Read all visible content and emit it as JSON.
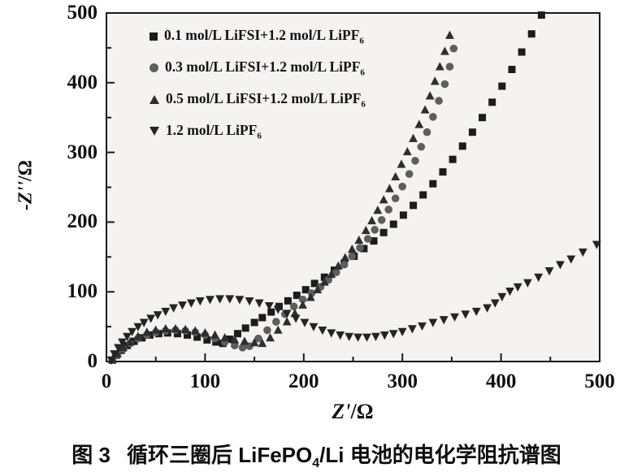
{
  "figure": {
    "caption": {
      "prefix": "图 3",
      "pre": "循环三圈后 LiFePO",
      "sub": "4",
      "post": "/Li 电池的电化学阻抗谱图"
    }
  },
  "chart_data": {
    "type": "scatter",
    "title": "",
    "xlabel": {
      "main": "Z'",
      "unit": "/Ω"
    },
    "ylabel": {
      "main": "-Z''",
      "unit": "/Ω"
    },
    "xlim": [
      0,
      500
    ],
    "ylim": [
      0,
      500
    ],
    "x_ticks": [
      0,
      100,
      200,
      300,
      400,
      500
    ],
    "y_ticks": [
      0,
      100,
      200,
      300,
      400,
      500
    ],
    "minor_tick_step": 50,
    "grid": false,
    "legend_position": "top-left",
    "plot_bg": "#f4f3f1",
    "axis_color": "#1a1a1a",
    "series": [
      {
        "name": "0.1 mol/L LiFSI+1.2 mol/L LiPF6",
        "label": "0.1 mol/L LiFSI+1.2 mol/L LiPF",
        "label_sub": "6",
        "marker": "square",
        "color": "#1c1c1c",
        "points": [
          [
            6,
            2
          ],
          [
            10,
            9
          ],
          [
            15,
            16
          ],
          [
            21,
            23
          ],
          [
            28,
            29
          ],
          [
            36,
            34
          ],
          [
            44,
            38
          ],
          [
            53,
            40
          ],
          [
            62,
            41
          ],
          [
            72,
            40
          ],
          [
            82,
            38
          ],
          [
            92,
            35
          ],
          [
            102,
            31
          ],
          [
            111,
            28
          ],
          [
            118,
            26
          ],
          [
            125,
            32
          ],
          [
            133,
            40
          ],
          [
            141,
            48
          ],
          [
            150,
            56
          ],
          [
            158,
            63
          ],
          [
            167,
            71
          ],
          [
            175,
            79
          ],
          [
            184,
            87
          ],
          [
            193,
            95
          ],
          [
            202,
            103
          ],
          [
            211,
            112
          ],
          [
            221,
            121
          ],
          [
            231,
            131
          ],
          [
            241,
            141
          ],
          [
            251,
            151
          ],
          [
            261,
            162
          ],
          [
            271,
            173
          ],
          [
            281,
            185
          ],
          [
            291,
            197
          ],
          [
            301,
            210
          ],
          [
            311,
            224
          ],
          [
            321,
            239
          ],
          [
            331,
            255
          ],
          [
            341,
            272
          ],
          [
            351,
            290
          ],
          [
            361,
            309
          ],
          [
            371,
            329
          ],
          [
            381,
            350
          ],
          [
            391,
            372
          ],
          [
            401,
            395
          ],
          [
            411,
            419
          ],
          [
            421,
            444
          ],
          [
            431,
            470
          ],
          [
            441,
            497
          ]
        ]
      },
      {
        "name": "0.3 mol/L LiFSI+1.2 mol/L LiPF6",
        "label": "0.3 mol/L LiFSI+1.2 mol/L LiPF",
        "label_sub": "6",
        "marker": "circle",
        "color": "#5e5e5e",
        "points": [
          [
            6,
            2
          ],
          [
            11,
            10
          ],
          [
            17,
            18
          ],
          [
            24,
            26
          ],
          [
            32,
            33
          ],
          [
            41,
            38
          ],
          [
            50,
            42
          ],
          [
            60,
            44
          ],
          [
            70,
            45
          ],
          [
            80,
            44
          ],
          [
            90,
            42
          ],
          [
            100,
            38
          ],
          [
            110,
            33
          ],
          [
            120,
            28
          ],
          [
            130,
            23
          ],
          [
            138,
            20
          ],
          [
            145,
            22
          ],
          [
            154,
            33
          ],
          [
            163,
            45
          ],
          [
            172,
            57
          ],
          [
            181,
            68
          ],
          [
            190,
            79
          ],
          [
            199,
            89
          ],
          [
            208,
            98
          ],
          [
            217,
            107
          ],
          [
            225,
            117
          ],
          [
            233,
            128
          ],
          [
            241,
            139
          ],
          [
            249,
            151
          ],
          [
            257,
            163
          ],
          [
            265,
            176
          ],
          [
            272,
            189
          ],
          [
            279,
            203
          ],
          [
            286,
            218
          ],
          [
            293,
            234
          ],
          [
            300,
            251
          ],
          [
            307,
            269
          ],
          [
            313,
            288
          ],
          [
            319,
            308
          ],
          [
            325,
            329
          ],
          [
            331,
            351
          ],
          [
            337,
            374
          ],
          [
            343,
            398
          ],
          [
            348,
            423
          ],
          [
            352,
            449
          ]
        ]
      },
      {
        "name": "0.5 mol/L LiFSI+1.2 mol/L LiPF6",
        "label": "0.5 mol/L LiFSI+1.2 mol/L LiPF",
        "label_sub": "6",
        "marker": "triangle-up",
        "color": "#2e2e2e",
        "points": [
          [
            6,
            3
          ],
          [
            11,
            11
          ],
          [
            17,
            20
          ],
          [
            24,
            28
          ],
          [
            32,
            36
          ],
          [
            41,
            42
          ],
          [
            50,
            45
          ],
          [
            60,
            47
          ],
          [
            70,
            47
          ],
          [
            80,
            46
          ],
          [
            90,
            44
          ],
          [
            100,
            41
          ],
          [
            110,
            38
          ],
          [
            120,
            34
          ],
          [
            130,
            31
          ],
          [
            140,
            29
          ],
          [
            150,
            27
          ],
          [
            158,
            26
          ],
          [
            166,
            34
          ],
          [
            174,
            45
          ],
          [
            183,
            57
          ],
          [
            191,
            69
          ],
          [
            199,
            81
          ],
          [
            207,
            92
          ],
          [
            214,
            103
          ],
          [
            221,
            114
          ],
          [
            228,
            125
          ],
          [
            235,
            137
          ],
          [
            242,
            149
          ],
          [
            249,
            161
          ],
          [
            256,
            174
          ],
          [
            263,
            188
          ],
          [
            269,
            202
          ],
          [
            275,
            217
          ],
          [
            281,
            232
          ],
          [
            287,
            248
          ],
          [
            293,
            265
          ],
          [
            299,
            283
          ],
          [
            305,
            301
          ],
          [
            311,
            320
          ],
          [
            317,
            340
          ],
          [
            323,
            361
          ],
          [
            328,
            381
          ],
          [
            333,
            402
          ],
          [
            338,
            423
          ],
          [
            343,
            445
          ],
          [
            348,
            468
          ]
        ]
      },
      {
        "name": "1.2 mol/L LiPF6",
        "label": "1.2 mol/L LiPF",
        "label_sub": "6",
        "marker": "triangle-down",
        "color": "#242424",
        "points": [
          [
            5,
            2
          ],
          [
            8,
            11
          ],
          [
            12,
            20
          ],
          [
            16,
            28
          ],
          [
            21,
            36
          ],
          [
            26,
            43
          ],
          [
            32,
            50
          ],
          [
            38,
            56
          ],
          [
            45,
            62
          ],
          [
            52,
            67
          ],
          [
            60,
            72
          ],
          [
            68,
            77
          ],
          [
            77,
            81
          ],
          [
            86,
            84
          ],
          [
            95,
            87
          ],
          [
            105,
            89
          ],
          [
            115,
            90
          ],
          [
            125,
            90
          ],
          [
            135,
            89
          ],
          [
            145,
            87
          ],
          [
            155,
            84
          ],
          [
            165,
            80
          ],
          [
            174,
            75
          ],
          [
            183,
            69
          ],
          [
            192,
            62
          ],
          [
            201,
            56
          ],
          [
            210,
            50
          ],
          [
            219,
            45
          ],
          [
            228,
            41
          ],
          [
            237,
            38
          ],
          [
            246,
            36
          ],
          [
            255,
            35
          ],
          [
            264,
            35
          ],
          [
            273,
            36
          ],
          [
            282,
            38
          ],
          [
            291,
            40
          ],
          [
            300,
            43
          ],
          [
            310,
            47
          ],
          [
            320,
            51
          ],
          [
            331,
            56
          ],
          [
            342,
            60
          ],
          [
            353,
            64
          ],
          [
            364,
            68
          ],
          [
            375,
            72
          ],
          [
            386,
            77
          ],
          [
            394,
            84
          ],
          [
            401,
            93
          ],
          [
            409,
            101
          ],
          [
            417,
            107
          ],
          [
            427,
            113
          ],
          [
            438,
            121
          ],
          [
            449,
            130
          ],
          [
            460,
            139
          ],
          [
            471,
            147
          ],
          [
            483,
            157
          ],
          [
            497,
            168
          ]
        ]
      }
    ]
  }
}
